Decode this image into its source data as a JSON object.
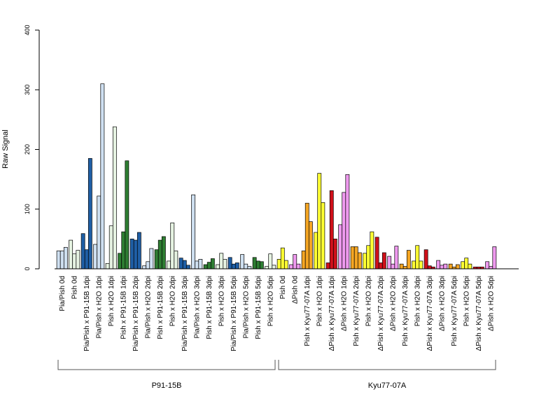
{
  "chart_data": {
    "type": "bar",
    "ylabel": "Raw Signal",
    "xlabel": "",
    "ylim": [
      0,
      400
    ],
    "yticks": [
      0,
      100,
      200,
      300,
      400
    ],
    "grid": false,
    "legend": "none",
    "categories": [
      "Pia/Pish 0d",
      "Pish 0d",
      "Pia/Pish x P91-15B 1dpi",
      "Pia/Pish x H2O 1dpi",
      "Pish x H2O 1dpi",
      "Pish x P91-15B 1dpi",
      "Pia/Pish x P91-15B 2dpi",
      "Pia/Pish x H2O 2dpi",
      "Pish x P91-15B 2dpi",
      "Pish x H2O 2dpi",
      "Pia/Pish x P91-15B 3dpi",
      "Pia/Pish x H2O 3dpi",
      "Pish x P91-15B 3dpi",
      "Pish x H2O 3dpi",
      "Pia/Pish x P91-15B 5dpi",
      "Pia/Pish x H2O 5dpi",
      "Pish x P91-15B 5dpi",
      "Pish x H2O 5dpi",
      "Pish 0d",
      "ΔPish 0d",
      "Pish x Kyu77-07A 1dpi",
      "Pish x H2O 1dpi",
      "ΔPish x Kyu77-07A 1dpi",
      "ΔPish x H2O 1dpi",
      "Pish x Kyu77-07A 2dpi",
      "Pish x H2O 2dpi",
      "ΔPish x Kyu77-07A 2dpi",
      "ΔPish x H2O 2dpi",
      "Pish x Kyu77-07A 3dpi",
      "Pish x H2O 3dpi",
      "ΔPish x Kyu77-07A 3dpi",
      "ΔPish x H2O 3dpi",
      "Pish x Kyu77-07A 5dpi",
      "Pish x H2O 5dpi",
      "ΔPish x Kyu77-07A 5dpi",
      "ΔPish x H2O 5dpi"
    ],
    "bar_colors": [
      "#cfe0f1",
      "#e6f3e2",
      "#1f5fa6",
      "#cfe0f1",
      "#e6f3e2",
      "#2e7d32",
      "#1f5fa6",
      "#cfe0f1",
      "#2e7d32",
      "#e6f3e2",
      "#1f5fa6",
      "#cfe0f1",
      "#2e7d32",
      "#e6f3e2",
      "#1f5fa6",
      "#cfe0f1",
      "#2e7d32",
      "#e6f3e2",
      "#ffff33",
      "#ee99ee",
      "#f5a623",
      "#ffff33",
      "#d0101a",
      "#ee99ee",
      "#f5a623",
      "#ffff33",
      "#d0101a",
      "#ee99ee",
      "#f5a623",
      "#ffff33",
      "#d0101a",
      "#ee99ee",
      "#f5a623",
      "#ffff33",
      "#d0101a",
      "#ee99ee"
    ],
    "values": [
      [
        30,
        30,
        36
      ],
      [
        48,
        25,
        31
      ],
      [
        59,
        32,
        185
      ],
      [
        41,
        122,
        310
      ],
      [
        9,
        72,
        238
      ],
      [
        26,
        62,
        181
      ],
      [
        50,
        48,
        61
      ],
      [
        5,
        12,
        34
      ],
      [
        32,
        48,
        54
      ],
      [
        13,
        77,
        30
      ],
      [
        18,
        14,
        6
      ],
      [
        124,
        13,
        16
      ],
      [
        7,
        11,
        17
      ],
      [
        7,
        26,
        16
      ],
      [
        19,
        8,
        10
      ],
      [
        24,
        8,
        4
      ],
      [
        19,
        13,
        12
      ],
      [
        4,
        25,
        6
      ],
      [
        16,
        35,
        14
      ],
      [
        7,
        24,
        8
      ],
      [
        30,
        110,
        79
      ],
      [
        61,
        160,
        111
      ],
      [
        10,
        131,
        50
      ],
      [
        74,
        128,
        158
      ],
      [
        37,
        37,
        27
      ],
      [
        26,
        39,
        62
      ],
      [
        53,
        10,
        27
      ],
      [
        21,
        8,
        38
      ],
      [
        8,
        4,
        31
      ],
      [
        13,
        39,
        13
      ],
      [
        32,
        5,
        3
      ],
      [
        14,
        6,
        8
      ],
      [
        8,
        3,
        7
      ],
      [
        12,
        18,
        8
      ],
      [
        3,
        3,
        3
      ],
      [
        12,
        4,
        37
      ]
    ],
    "groups": [
      {
        "label": "P91-15B",
        "from": 0,
        "to": 17
      },
      {
        "label": "Kyu77-07A",
        "from": 18,
        "to": 35
      }
    ],
    "xtick_label_every": 2
  }
}
